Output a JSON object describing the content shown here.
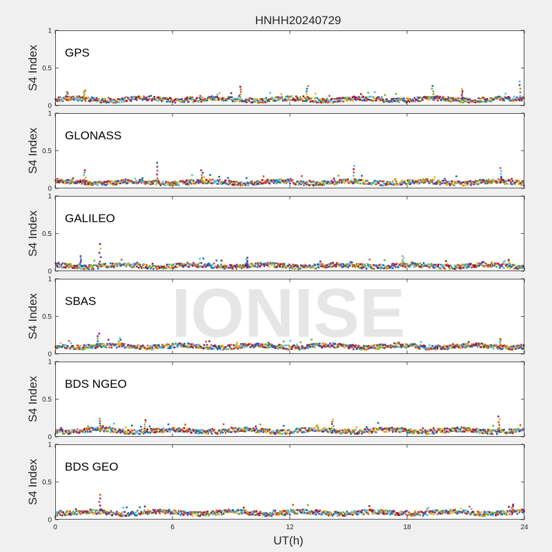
{
  "chart_data": {
    "type": "scatter",
    "title": "HNHH20240729",
    "xlabel": "UT(h)",
    "ylabel": "S4 Index",
    "xlim": [
      0,
      24
    ],
    "ylim": [
      0,
      1
    ],
    "xticks": [
      0,
      6,
      12,
      18,
      24
    ],
    "yticks": [
      0,
      0.5,
      1
    ],
    "ytick_labels": [
      "0",
      "0.5",
      "1"
    ],
    "grid": false,
    "watermark": "IONISE",
    "series_colors": [
      "#0072BD",
      "#D95319",
      "#EDB120",
      "#7E2F8E",
      "#77AC30",
      "#4DBEEE",
      "#A2142F"
    ],
    "panels": [
      {
        "name": "GPS",
        "baseline": 0.08,
        "spikes": [
          [
            0.6,
            0.18
          ],
          [
            1.5,
            0.2
          ],
          [
            9.5,
            0.25
          ],
          [
            12.9,
            0.26
          ],
          [
            19.3,
            0.26
          ],
          [
            20.8,
            0.22
          ],
          [
            23.8,
            0.32
          ]
        ]
      },
      {
        "name": "GLONASS",
        "baseline": 0.08,
        "spikes": [
          [
            1.5,
            0.24
          ],
          [
            5.2,
            0.34
          ],
          [
            7.5,
            0.24
          ],
          [
            15.3,
            0.3
          ],
          [
            22.8,
            0.27
          ]
        ]
      },
      {
        "name": "GALILEO",
        "baseline": 0.07,
        "spikes": [
          [
            1.3,
            0.2
          ],
          [
            2.3,
            0.36
          ],
          [
            9.8,
            0.18
          ],
          [
            17.8,
            0.2
          ],
          [
            23.2,
            0.15
          ]
        ]
      },
      {
        "name": "SBAS",
        "baseline": 0.1,
        "spikes": [
          [
            2.2,
            0.27
          ],
          [
            3.3,
            0.21
          ],
          [
            22.8,
            0.2
          ]
        ]
      },
      {
        "name": "BDS NGEO",
        "baseline": 0.08,
        "spikes": [
          [
            2.3,
            0.24
          ],
          [
            4.6,
            0.22
          ],
          [
            14.2,
            0.23
          ],
          [
            22.7,
            0.27
          ]
        ]
      },
      {
        "name": "BDS GEO",
        "baseline": 0.09,
        "spikes": [
          [
            2.3,
            0.33
          ],
          [
            23.4,
            0.2
          ]
        ]
      }
    ]
  }
}
